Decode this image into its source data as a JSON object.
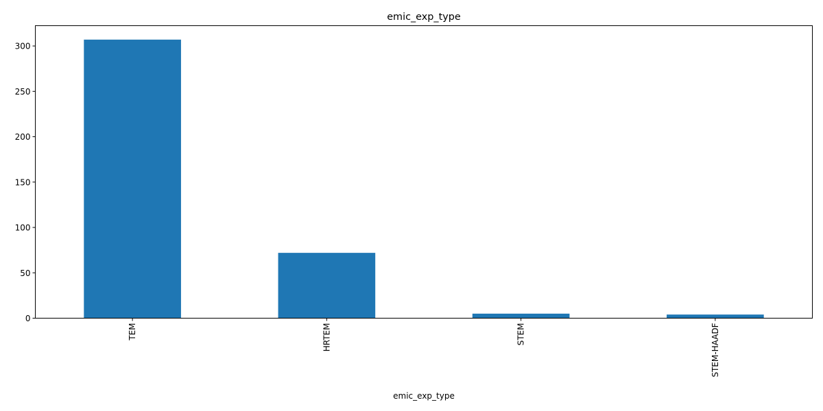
{
  "chart_data": {
    "type": "bar",
    "title": "emic_exp_type",
    "xlabel": "emic_exp_type",
    "ylabel": "",
    "categories": [
      "TEM",
      "HRTEM",
      "STEM",
      "STEM-HAADF"
    ],
    "values": [
      307,
      72,
      5,
      4
    ],
    "ylim": [
      0,
      322.35
    ],
    "yticks": [
      0,
      50,
      100,
      150,
      200,
      250,
      300
    ],
    "bar_color": "#1f77b4",
    "grid": false,
    "legend": "none"
  }
}
